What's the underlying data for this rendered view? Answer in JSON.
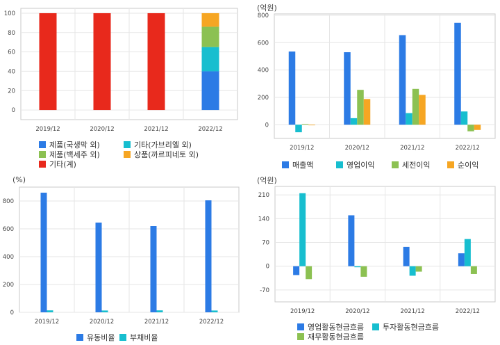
{
  "colors": {
    "blue": "#2c7be5",
    "cyan": "#17becf",
    "green": "#8cc152",
    "orange": "#f6a623",
    "red": "#e8291c",
    "grid": "#e6e6e6",
    "frame": "#c8c8c8"
  },
  "chart_data": [
    {
      "id": "composition",
      "type": "bar",
      "stacked": true,
      "unit": "",
      "categories": [
        "2019/12",
        "2020/12",
        "2021/12",
        "2022/12"
      ],
      "ylim": [
        -10,
        105
      ],
      "yticks": [
        0,
        20,
        40,
        60,
        80,
        100
      ],
      "grid": true,
      "legend_position": "bottom",
      "series": [
        {
          "name": "제품(국생막 외)",
          "color": "#2c7be5",
          "values": [
            0,
            0,
            0,
            40
          ]
        },
        {
          "name": "기타(가브리엘 외)",
          "color": "#17becf",
          "values": [
            0,
            0,
            0,
            25
          ]
        },
        {
          "name": "제품(백세주 외)",
          "color": "#8cc152",
          "values": [
            0,
            0,
            0,
            21
          ]
        },
        {
          "name": "상품(까르피네토 외)",
          "color": "#f6a623",
          "values": [
            0,
            0,
            0,
            14
          ]
        },
        {
          "name": "기타(계)",
          "color": "#e8291c",
          "values": [
            100,
            100,
            100,
            0
          ]
        }
      ]
    },
    {
      "id": "income",
      "type": "bar",
      "unit": "(억원)",
      "categories": [
        "2019/12",
        "2020/12",
        "2021/12",
        "2022/12"
      ],
      "ylim": [
        -100,
        810
      ],
      "yticks": [
        0,
        200,
        400,
        600,
        800
      ],
      "grid": true,
      "legend_position": "bottom",
      "series": [
        {
          "name": "매출액",
          "color": "#2c7be5",
          "values": [
            535,
            530,
            655,
            745
          ]
        },
        {
          "name": "영업이익",
          "color": "#17becf",
          "values": [
            -55,
            48,
            85,
            97
          ]
        },
        {
          "name": "세전이익",
          "color": "#8cc152",
          "values": [
            5,
            255,
            262,
            -48
          ]
        },
        {
          "name": "순이익",
          "color": "#f6a623",
          "values": [
            -3,
            188,
            218,
            -38
          ]
        }
      ]
    },
    {
      "id": "ratios",
      "type": "bar",
      "unit": "(%)",
      "categories": [
        "2019/12",
        "2020/12",
        "2021/12",
        "2022/12"
      ],
      "ylim": [
        0,
        900
      ],
      "yticks": [
        0,
        200,
        400,
        600,
        800
      ],
      "grid": true,
      "legend_position": "bottom",
      "series": [
        {
          "name": "유동비율",
          "color": "#2c7be5",
          "values": [
            860,
            645,
            620,
            805
          ]
        },
        {
          "name": "부채비율",
          "color": "#17becf",
          "values": [
            14,
            13,
            14,
            13
          ]
        }
      ]
    },
    {
      "id": "cashflow",
      "type": "bar",
      "unit": "(억원)",
      "categories": [
        "2019/12",
        "2020/12",
        "2021/12",
        "2022/12"
      ],
      "ylim": [
        -105,
        235
      ],
      "yticks": [
        -70,
        0,
        70,
        140,
        210
      ],
      "grid": true,
      "legend_position": "bottom",
      "series": [
        {
          "name": "영업활동현금흐름",
          "color": "#2c7be5",
          "values": [
            -26,
            150,
            57,
            38
          ]
        },
        {
          "name": "투자활동현금흐름",
          "color": "#17becf",
          "values": [
            215,
            -3,
            -28,
            80
          ]
        },
        {
          "name": "재무활동현금흐름",
          "color": "#8cc152",
          "values": [
            -38,
            -31,
            -16,
            -23
          ]
        }
      ]
    }
  ]
}
